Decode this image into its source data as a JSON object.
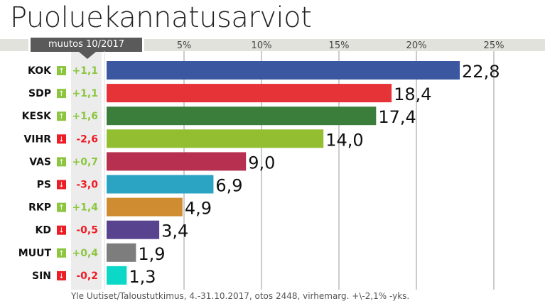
{
  "title": "Puoluekannatusarviot",
  "change_header": "muutos 10/2017",
  "source": "Yle Uutiset/Taloustutkimus, 4.-31.10.2017, otos 2448, virhemarg. +\\-2,1% -yks.",
  "chart_data": {
    "type": "bar",
    "orientation": "horizontal",
    "title": "Puoluekannatusarviot",
    "xlim": [
      0,
      27
    ],
    "grid": true,
    "ticks": [
      5,
      10,
      15,
      20,
      25
    ],
    "tick_labels": [
      "5%",
      "10%",
      "15%",
      "20%",
      "25%"
    ],
    "categories": [
      "KOK",
      "SDP",
      "KESK",
      "VIHR",
      "VAS",
      "PS",
      "RKP",
      "KD",
      "MUUT",
      "SIN"
    ],
    "values": [
      22.8,
      18.4,
      17.4,
      14.0,
      9.0,
      6.9,
      4.9,
      3.4,
      1.9,
      1.3
    ],
    "value_labels": [
      "22,8",
      "18,4",
      "17,4",
      "14,0",
      "9,0",
      "6,9",
      "4,9",
      "3,4",
      "1,9",
      "1,3"
    ],
    "changes": [
      "+1,1",
      "+1,1",
      "+1,6",
      "-2,6",
      "+0,7",
      "-3,0",
      "+1,4",
      "-0,5",
      "+0,4",
      "-0,2"
    ],
    "change_direction": [
      "up",
      "up",
      "up",
      "down",
      "up",
      "down",
      "up",
      "down",
      "up",
      "down"
    ],
    "colors": [
      "#3a57a0",
      "#e63337",
      "#3b7d3a",
      "#94be32",
      "#b83050",
      "#2ba3c2",
      "#d08c31",
      "#58448e",
      "#7d7d7d",
      "#0cd8c8"
    ],
    "up_color": "#8cc63f",
    "down_color": "#ee1c25"
  }
}
